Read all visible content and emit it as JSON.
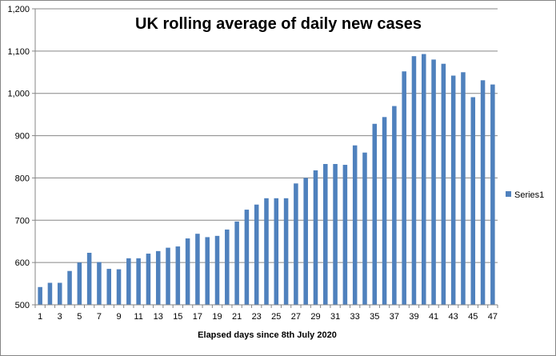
{
  "chart_data": {
    "type": "bar",
    "title": "UK rolling average of  daily new cases",
    "xlabel": "Elapsed days since 8th July 2020",
    "ylabel": "",
    "ylim": [
      500,
      1200
    ],
    "yticks": [
      500,
      600,
      700,
      800,
      900,
      1000,
      1100,
      1200
    ],
    "ytick_labels": [
      "500",
      "600",
      "700",
      "800",
      "900",
      "1,000",
      "1,100",
      "1,200"
    ],
    "grid": true,
    "legend": {
      "position": "right",
      "entries": [
        "Series1"
      ]
    },
    "bar_color": "#4F81BD",
    "categories": [
      "1",
      "2",
      "3",
      "4",
      "5",
      "6",
      "7",
      "8",
      "9",
      "10",
      "11",
      "12",
      "13",
      "14",
      "15",
      "16",
      "17",
      "18",
      "19",
      "20",
      "21",
      "22",
      "23",
      "24",
      "25",
      "26",
      "27",
      "28",
      "29",
      "30",
      "31",
      "32",
      "33",
      "34",
      "35",
      "36",
      "37",
      "38",
      "39",
      "40",
      "41",
      "42",
      "43",
      "44",
      "45",
      "46",
      "47"
    ],
    "xtick_labels_shown": [
      "1",
      "3",
      "5",
      "7",
      "9",
      "11",
      "13",
      "15",
      "17",
      "19",
      "21",
      "23",
      "25",
      "27",
      "29",
      "31",
      "33",
      "35",
      "37",
      "39",
      "41",
      "43",
      "45",
      "47"
    ],
    "series": [
      {
        "name": "Series1",
        "values": [
          542,
          552,
          552,
          580,
          600,
          623,
          601,
          585,
          584,
          610,
          610,
          621,
          627,
          635,
          638,
          657,
          668,
          660,
          663,
          678,
          697,
          725,
          737,
          752,
          752,
          752,
          787,
          800,
          818,
          833,
          833,
          831,
          877,
          860,
          928,
          944,
          970,
          1052,
          1088,
          1093,
          1080,
          1070,
          1042,
          1050,
          991,
          1031,
          1021
        ]
      }
    ]
  }
}
